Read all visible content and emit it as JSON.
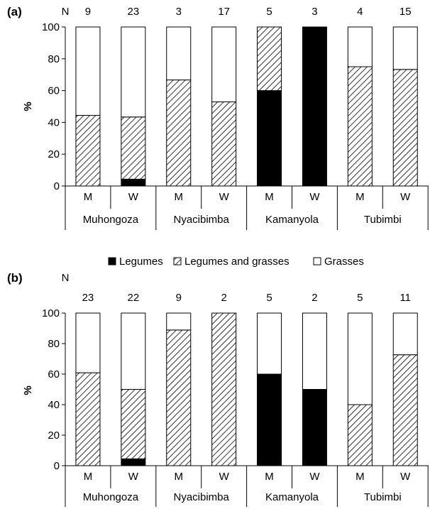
{
  "legend": {
    "position": "center",
    "items": [
      {
        "name": "Legumes",
        "color": "#000000",
        "pattern": "solid"
      },
      {
        "name": "Legumes and grasses",
        "color": "#000000",
        "pattern": "hatch"
      },
      {
        "name": "Grasses",
        "color": "#ffffff",
        "pattern": "empty"
      }
    ]
  },
  "chart_data": [
    {
      "type": "bar",
      "stacked": true,
      "panel_label": "(a)",
      "n_label": "N",
      "ylabel": "%",
      "ylim": [
        0,
        100
      ],
      "yticks": [
        0,
        20,
        40,
        60,
        80,
        100
      ],
      "grid": false,
      "categories": [
        "M",
        "W",
        "M",
        "W",
        "M",
        "W",
        "M",
        "W"
      ],
      "groups": [
        "Muhongoza",
        "Nyacibimba",
        "Kamanyola",
        "Tubimbi"
      ],
      "n": [
        9,
        23,
        3,
        17,
        5,
        3,
        4,
        15
      ],
      "series": [
        {
          "name": "Legumes",
          "values": [
            0,
            4.3,
            0,
            0,
            60,
            100,
            0,
            0
          ]
        },
        {
          "name": "Legumes and grasses",
          "values": [
            44.4,
            39.1,
            66.7,
            52.9,
            40,
            0,
            75,
            73.3
          ]
        },
        {
          "name": "Grasses",
          "values": [
            55.6,
            56.6,
            33.3,
            47.1,
            0,
            0,
            25,
            26.7
          ]
        }
      ]
    },
    {
      "type": "bar",
      "stacked": true,
      "panel_label": "(b)",
      "n_label": "N",
      "ylabel": "%",
      "ylim": [
        0,
        100
      ],
      "yticks": [
        0,
        20,
        40,
        60,
        80,
        100
      ],
      "grid": false,
      "categories": [
        "M",
        "W",
        "M",
        "W",
        "M",
        "W",
        "M",
        "W"
      ],
      "groups": [
        "Muhongoza",
        "Nyacibimba",
        "Kamanyola",
        "Tubimbi"
      ],
      "n": [
        23,
        22,
        9,
        2,
        5,
        2,
        5,
        11
      ],
      "series": [
        {
          "name": "Legumes",
          "values": [
            0,
            4.5,
            0,
            0,
            60,
            50,
            0,
            0
          ]
        },
        {
          "name": "Legumes and grasses",
          "values": [
            60.9,
            45.5,
            88.9,
            100,
            0,
            0,
            40,
            72.7
          ]
        },
        {
          "name": "Grasses",
          "values": [
            39.1,
            50,
            11.1,
            0,
            40,
            50,
            60,
            27.3
          ]
        }
      ]
    }
  ]
}
